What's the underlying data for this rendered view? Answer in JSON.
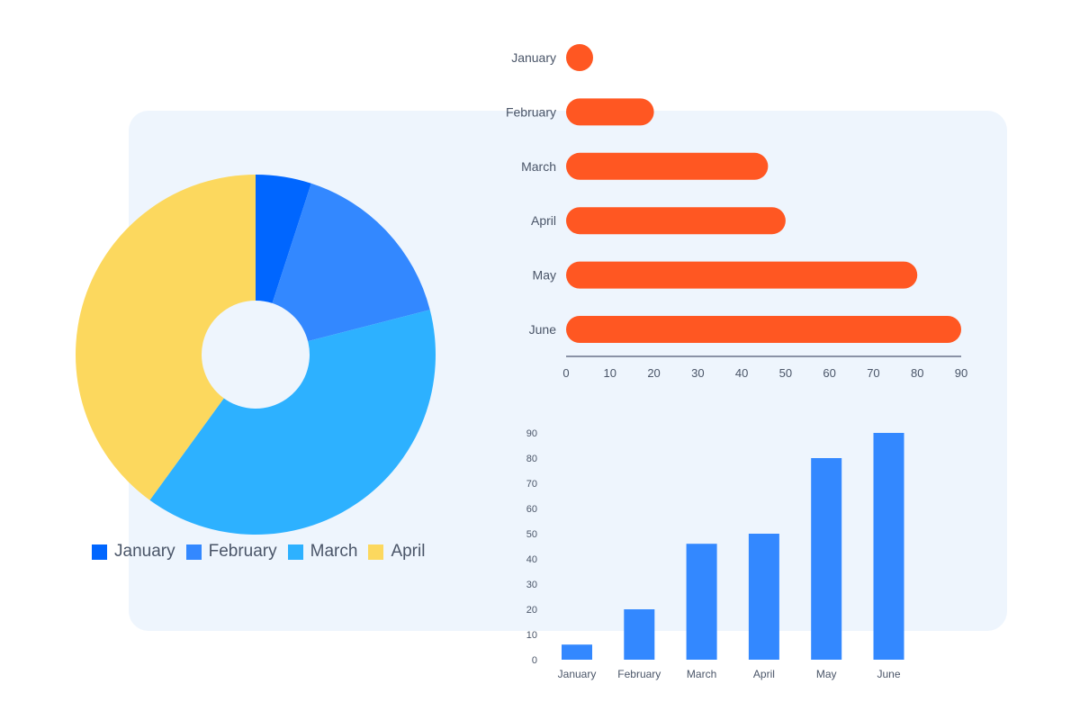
{
  "colors": {
    "panel_bg": "#eef5fd",
    "hbar": "#ff5722",
    "vbar": "#3388ff",
    "axis": "#8a92a6",
    "label": "#4a5568"
  },
  "chart_data": [
    {
      "type": "pie",
      "variant": "donut",
      "title": "",
      "categories": [
        "January",
        "February",
        "March",
        "April"
      ],
      "values": [
        5,
        16,
        39,
        40
      ],
      "colors": [
        "#0066ff",
        "#3388ff",
        "#2db1ff",
        "#fcd85e"
      ],
      "legend": "bottom-left"
    },
    {
      "type": "bar",
      "orientation": "horizontal",
      "title": "",
      "categories": [
        "January",
        "February",
        "March",
        "April",
        "May",
        "June"
      ],
      "values": [
        3,
        20,
        46,
        50,
        80,
        90
      ],
      "xlim": [
        0,
        90
      ],
      "xticks": [
        0,
        10,
        20,
        30,
        40,
        50,
        60,
        70,
        80,
        90
      ],
      "color": "#ff5722",
      "grid": false
    },
    {
      "type": "bar",
      "orientation": "vertical",
      "title": "",
      "categories": [
        "January",
        "February",
        "March",
        "April",
        "May",
        "June"
      ],
      "values": [
        6,
        20,
        46,
        50,
        80,
        90
      ],
      "ylim": [
        0,
        90
      ],
      "yticks": [
        0,
        10,
        20,
        30,
        40,
        50,
        60,
        70,
        80,
        90
      ],
      "color": "#3388ff",
      "grid": false
    }
  ]
}
